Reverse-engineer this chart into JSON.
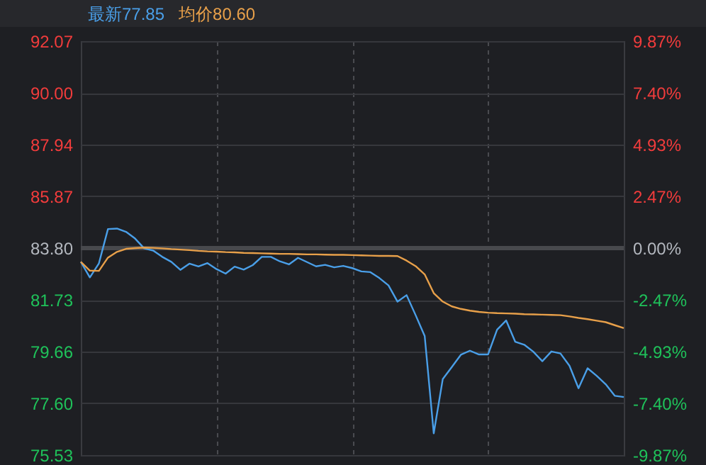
{
  "chart_data": {
    "type": "line",
    "categories": [
      null,
      null,
      null,
      null,
      null,
      null,
      null,
      null,
      null,
      null,
      null,
      null,
      null,
      null,
      null,
      null,
      null,
      null,
      null,
      null,
      null,
      null,
      null,
      null,
      null,
      null,
      null,
      null,
      null,
      null,
      null,
      null,
      null,
      null,
      null,
      null,
      null,
      null,
      null,
      null,
      null,
      null,
      null,
      null,
      null,
      null,
      null,
      null,
      null,
      null,
      null,
      null,
      null,
      null,
      null,
      null,
      null,
      null,
      null,
      null,
      null
    ],
    "ylim": [
      75.53,
      92.07
    ],
    "yticks": [
      {
        "value": 75.53,
        "label": "75.53"
      },
      {
        "value": 77.6,
        "label": "77.60"
      },
      {
        "value": 79.66,
        "label": "79.66"
      },
      {
        "value": 81.73,
        "label": "81.73"
      },
      {
        "value": 83.8,
        "label": "83.80"
      },
      {
        "value": 85.87,
        "label": "85.87"
      },
      {
        "value": 87.94,
        "label": "87.94"
      },
      {
        "value": 90,
        "label": "90.00"
      },
      {
        "value": 92.07,
        "label": "92.07"
      }
    ],
    "y2lim": [
      -9.87,
      9.87
    ],
    "y2ticks": [
      {
        "value": -9.87,
        "label": "-9.87%"
      },
      {
        "value": -7.4,
        "label": "-7.40%"
      },
      {
        "value": -4.93,
        "label": "-4.93%"
      },
      {
        "value": -2.47,
        "label": "-2.47%"
      },
      {
        "value": 0,
        "label": "0.00%"
      },
      {
        "value": 2.47,
        "label": "2.47%"
      },
      {
        "value": 4.93,
        "label": "4.93%"
      },
      {
        "value": 7.4,
        "label": "7.40%"
      },
      {
        "value": 9.87,
        "label": "9.87%"
      }
    ],
    "grid": true,
    "ref_lines": [
      {
        "axis": "y",
        "value": 83.8,
        "color": "#48494d"
      }
    ],
    "series": [
      {
        "name": "最新77.85",
        "color": "#4a9fe8",
        "values": [
          83.25,
          82.63,
          83.19,
          84.56,
          84.58,
          84.45,
          84.18,
          83.79,
          83.7,
          83.45,
          83.25,
          82.93,
          83.18,
          83.07,
          83.2,
          82.96,
          82.78,
          83.06,
          82.94,
          83.12,
          83.45,
          83.45,
          83.27,
          83.15,
          83.41,
          83.24,
          83.07,
          83.13,
          83.03,
          83.09,
          83.0,
          82.87,
          82.84,
          82.6,
          82.31,
          81.66,
          81.92,
          81.12,
          80.29,
          76.4,
          78.57,
          79.05,
          79.54,
          79.7,
          79.55,
          79.55,
          80.54,
          80.91,
          80.06,
          79.94,
          79.66,
          79.28,
          79.67,
          79.59,
          79.1,
          78.2,
          79.0,
          78.7,
          78.36,
          77.9,
          77.85
        ]
      },
      {
        "name": "均价80.60",
        "color": "#e8a04a",
        "values": [
          83.25,
          82.9,
          82.89,
          83.42,
          83.65,
          83.77,
          83.8,
          83.82,
          83.81,
          83.79,
          83.76,
          83.74,
          83.72,
          83.69,
          83.67,
          83.66,
          83.64,
          83.63,
          83.61,
          83.6,
          83.59,
          83.58,
          83.57,
          83.57,
          83.56,
          83.55,
          83.55,
          83.54,
          83.53,
          83.53,
          83.52,
          83.51,
          83.5,
          83.49,
          83.49,
          83.48,
          83.3,
          83.08,
          82.75,
          82.0,
          81.66,
          81.47,
          81.37,
          81.3,
          81.25,
          81.22,
          81.2,
          81.19,
          81.18,
          81.16,
          81.15,
          81.14,
          81.13,
          81.12,
          81.07,
          81.01,
          80.96,
          80.9,
          80.84,
          80.72,
          80.6
        ]
      }
    ]
  }
}
